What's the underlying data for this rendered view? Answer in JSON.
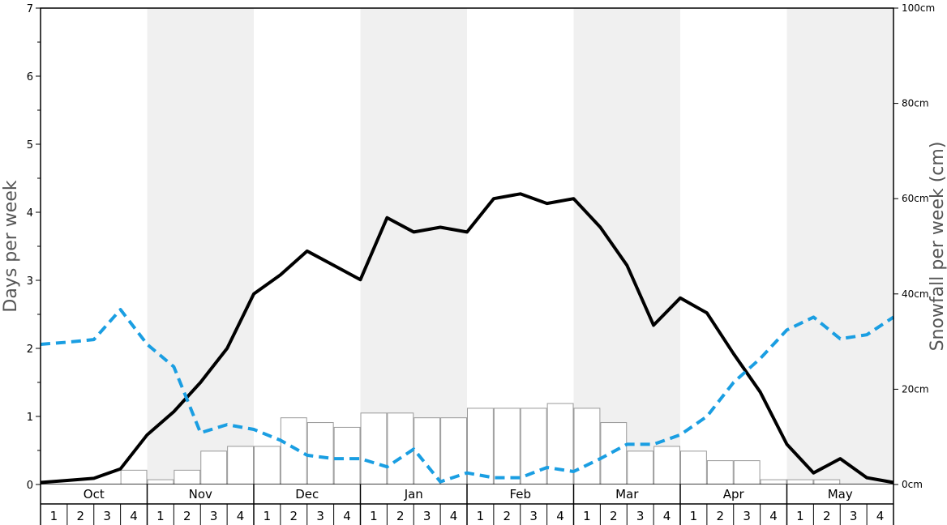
{
  "chart_data": {
    "type": "bar+line",
    "left_axis": {
      "title": "Days per week",
      "range": [
        0,
        7
      ],
      "ticks": [
        "0",
        "1",
        "2",
        "3",
        "4",
        "5",
        "6",
        "7"
      ]
    },
    "right_axis": {
      "title": "Snowfall per week (cm)",
      "range": [
        0,
        100
      ],
      "ticks": [
        "0cm",
        "20cm",
        "40cm",
        "60cm",
        "80cm",
        "100cm"
      ]
    },
    "months": [
      "Oct",
      "Nov",
      "Dec",
      "Jan",
      "Feb",
      "Mar",
      "Apr",
      "May"
    ],
    "week_labels": [
      "1",
      "2",
      "3",
      "4"
    ],
    "shaded_months": [
      "Nov",
      "Jan",
      "Mar",
      "May"
    ],
    "colors": {
      "days_line": "#000000",
      "dashed_line": "#1a9ee2",
      "bar_fill": "#ffffff",
      "bar_stroke": "#999999",
      "shade": "#f0f0f0"
    },
    "series": [
      {
        "kind": "bar",
        "axis": "right",
        "values": [
          0,
          0,
          0,
          3,
          1,
          3,
          7,
          8,
          8,
          14,
          13,
          12,
          15,
          15,
          14,
          14,
          16,
          16,
          16,
          17,
          16,
          13,
          7,
          8,
          7,
          5,
          5,
          1,
          1,
          1,
          0,
          0
        ]
      },
      {
        "kind": "line",
        "style": "solid",
        "axis": "left",
        "values": [
          0.03,
          0.06,
          0.09,
          0.23,
          0.73,
          1.07,
          1.5,
          2.0,
          2.8,
          3.08,
          3.43,
          3.22,
          3.01,
          3.92,
          3.71,
          3.78,
          3.71,
          4.2,
          4.27,
          4.13,
          4.2,
          3.78,
          3.22,
          2.34,
          2.74,
          2.52,
          1.92,
          1.36,
          0.59,
          0.17,
          0.38,
          0.1,
          0.03
        ]
      },
      {
        "kind": "line",
        "style": "dashed",
        "axis": "left",
        "values": [
          2.06,
          2.09,
          2.13,
          2.57,
          2.06,
          1.73,
          0.76,
          0.88,
          0.81,
          0.65,
          0.43,
          0.38,
          0.38,
          0.26,
          0.52,
          0.04,
          0.17,
          0.1,
          0.1,
          0.25,
          0.19,
          0.38,
          0.59,
          0.59,
          0.73,
          1.0,
          1.5,
          1.85,
          2.27,
          2.46,
          2.14,
          2.2,
          2.46
        ]
      }
    ]
  }
}
